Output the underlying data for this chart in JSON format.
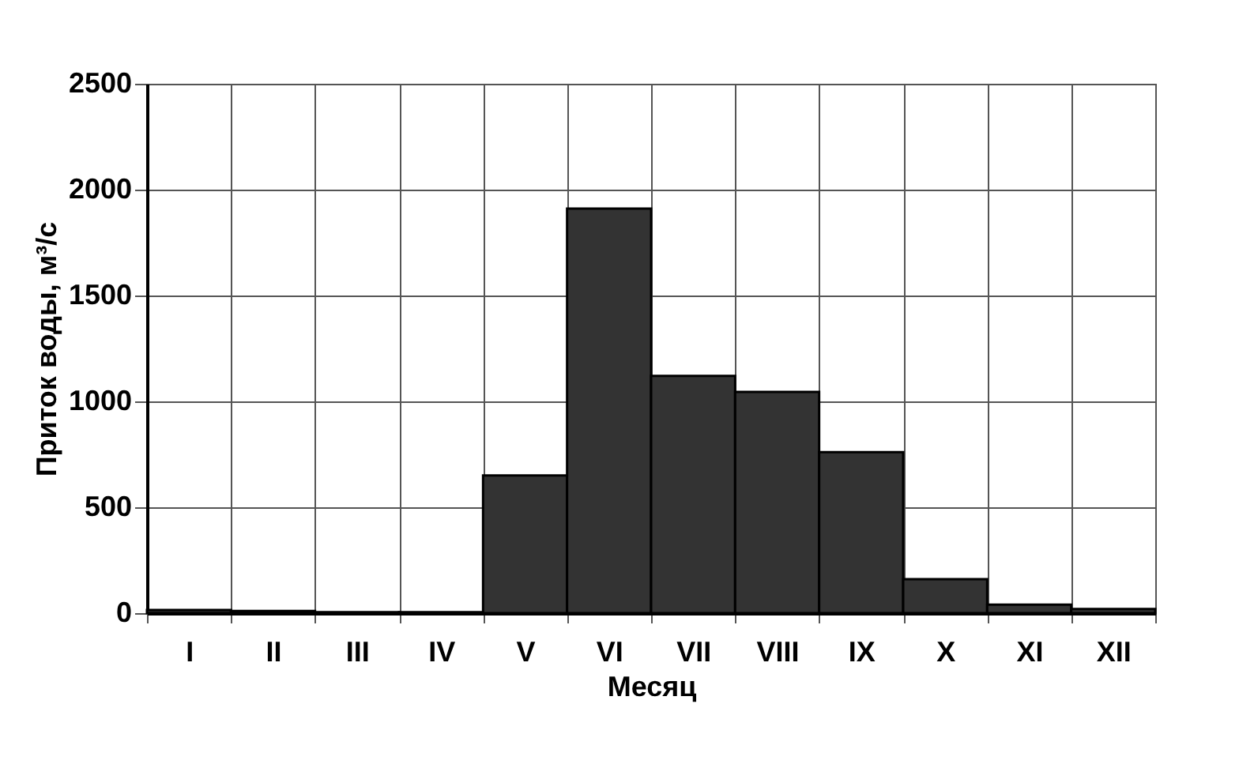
{
  "chart_data": {
    "type": "bar",
    "xlabel": "Месяц",
    "ylabel": "Приток воды, м³/с",
    "categories": [
      "I",
      "II",
      "III",
      "IV",
      "V",
      "VI",
      "VII",
      "VIII",
      "IX",
      "X",
      "XI",
      "XII"
    ],
    "values": [
      15,
      10,
      5,
      5,
      650,
      1910,
      1120,
      1045,
      760,
      160,
      40,
      20
    ],
    "color": "#333333",
    "ylim": [
      0,
      2500
    ],
    "yticks": [
      0,
      500,
      1000,
      1500,
      2000,
      2500
    ],
    "grid": true
  }
}
